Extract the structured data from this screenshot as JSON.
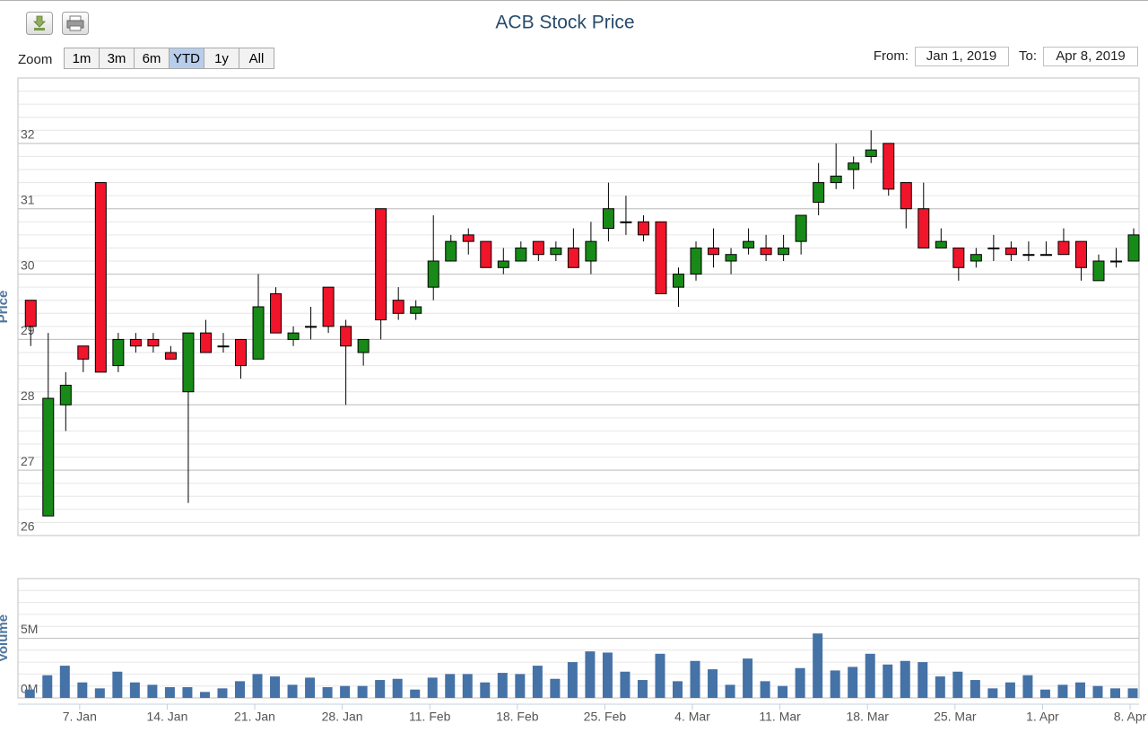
{
  "title": "ACB Stock Price",
  "zoom": {
    "label": "Zoom",
    "buttons": [
      "1m",
      "3m",
      "6m",
      "YTD",
      "1y",
      "All"
    ],
    "selected": 3
  },
  "range": {
    "from_label": "From:",
    "from": "Jan 1, 2019",
    "to_label": "To:",
    "to": "Apr 8, 2019"
  },
  "chart_data": [
    {
      "type": "candlestick",
      "y_label": "Price",
      "x": [
        "2019-01-02",
        "2019-01-03",
        "2019-01-04",
        "2019-01-07",
        "2019-01-08",
        "2019-01-09",
        "2019-01-10",
        "2019-01-11",
        "2019-01-14",
        "2019-01-15",
        "2019-01-16",
        "2019-01-17",
        "2019-01-18",
        "2019-01-21",
        "2019-01-22",
        "2019-01-23",
        "2019-01-24",
        "2019-01-25",
        "2019-01-28",
        "2019-01-29",
        "2019-01-30",
        "2019-01-31",
        "2019-02-01",
        "2019-02-11",
        "2019-02-12",
        "2019-02-13",
        "2019-02-14",
        "2019-02-15",
        "2019-02-18",
        "2019-02-19",
        "2019-02-20",
        "2019-02-21",
        "2019-02-22",
        "2019-02-25",
        "2019-02-26",
        "2019-02-27",
        "2019-02-28",
        "2019-03-01",
        "2019-03-04",
        "2019-03-05",
        "2019-03-06",
        "2019-03-07",
        "2019-03-08",
        "2019-03-11",
        "2019-03-12",
        "2019-03-13",
        "2019-03-14",
        "2019-03-15",
        "2019-03-18",
        "2019-03-19",
        "2019-03-20",
        "2019-03-21",
        "2019-03-22",
        "2019-03-25",
        "2019-03-26",
        "2019-03-27",
        "2019-03-28",
        "2019-03-29",
        "2019-04-01",
        "2019-04-02",
        "2019-04-03",
        "2019-04-04",
        "2019-04-05",
        "2019-04-08"
      ],
      "open": [
        29.6,
        26.3,
        28.0,
        28.9,
        31.4,
        28.6,
        29.0,
        29.0,
        28.8,
        28.2,
        29.1,
        28.9,
        29.0,
        28.7,
        29.7,
        29.0,
        29.2,
        29.8,
        29.2,
        28.8,
        31.0,
        29.6,
        29.4,
        29.8,
        30.2,
        30.6,
        30.5,
        30.1,
        30.2,
        30.5,
        30.3,
        30.4,
        30.2,
        30.7,
        30.8,
        30.8,
        30.8,
        29.8,
        30.0,
        30.4,
        30.2,
        30.4,
        30.4,
        30.3,
        30.5,
        31.1,
        31.4,
        31.6,
        31.8,
        32.0,
        31.4,
        31.0,
        30.4,
        30.4,
        30.2,
        30.4,
        30.4,
        30.3,
        30.3,
        30.5,
        30.5,
        29.9,
        30.2,
        30.2
      ],
      "high": [
        29.6,
        29.1,
        28.5,
        28.9,
        31.4,
        29.1,
        29.1,
        29.1,
        28.9,
        29.1,
        29.3,
        29.1,
        29.0,
        30.0,
        29.8,
        29.2,
        29.5,
        29.8,
        29.3,
        29.0,
        31.0,
        29.8,
        29.6,
        30.9,
        30.6,
        30.7,
        30.5,
        30.4,
        30.5,
        30.5,
        30.5,
        30.7,
        30.8,
        31.4,
        31.2,
        30.9,
        30.8,
        30.1,
        30.5,
        30.7,
        30.4,
        30.7,
        30.6,
        30.6,
        30.9,
        31.7,
        32.0,
        31.8,
        32.2,
        32.0,
        31.4,
        31.4,
        30.7,
        30.4,
        30.4,
        30.6,
        30.5,
        30.5,
        30.5,
        30.7,
        30.5,
        30.3,
        30.4,
        30.7
      ],
      "low": [
        28.9,
        26.3,
        27.6,
        28.5,
        28.5,
        28.5,
        28.8,
        28.8,
        28.7,
        26.5,
        28.8,
        28.8,
        28.4,
        28.7,
        29.1,
        28.9,
        29.0,
        29.1,
        28.0,
        28.6,
        29.0,
        29.3,
        29.3,
        29.6,
        30.2,
        30.3,
        30.1,
        30.0,
        30.2,
        30.2,
        30.2,
        30.1,
        30.0,
        30.5,
        30.6,
        30.5,
        29.7,
        29.5,
        29.9,
        30.1,
        30.0,
        30.3,
        30.2,
        30.2,
        30.3,
        30.9,
        31.3,
        31.3,
        31.7,
        31.2,
        30.7,
        30.4,
        30.4,
        29.9,
        30.1,
        30.2,
        30.2,
        30.2,
        30.3,
        30.3,
        29.9,
        29.9,
        30.1,
        30.2
      ],
      "close": [
        29.2,
        28.1,
        28.3,
        28.7,
        28.5,
        29.0,
        28.9,
        28.9,
        28.7,
        29.1,
        28.8,
        28.9,
        28.6,
        29.5,
        29.1,
        29.1,
        29.2,
        29.2,
        28.9,
        29.0,
        29.3,
        29.4,
        29.5,
        30.2,
        30.5,
        30.5,
        30.1,
        30.2,
        30.4,
        30.3,
        30.4,
        30.1,
        30.5,
        31.0,
        30.8,
        30.6,
        29.7,
        30.0,
        30.4,
        30.3,
        30.3,
        30.5,
        30.3,
        30.4,
        30.9,
        31.4,
        31.5,
        31.7,
        31.9,
        31.3,
        31.0,
        30.4,
        30.5,
        30.1,
        30.3,
        30.4,
        30.3,
        30.3,
        30.3,
        30.3,
        30.1,
        30.2,
        30.2,
        30.6
      ],
      "up_color": "#178a17",
      "down_color": "#f0152a",
      "ylim": [
        26,
        33
      ],
      "yticks": [
        26,
        27,
        28,
        29,
        30,
        31,
        32
      ],
      "minor_step": 0.2,
      "grid": true
    },
    {
      "type": "bar",
      "y_label": "Volume",
      "x": [
        "2019-01-02",
        "2019-01-03",
        "2019-01-04",
        "2019-01-07",
        "2019-01-08",
        "2019-01-09",
        "2019-01-10",
        "2019-01-11",
        "2019-01-14",
        "2019-01-15",
        "2019-01-16",
        "2019-01-17",
        "2019-01-18",
        "2019-01-21",
        "2019-01-22",
        "2019-01-23",
        "2019-01-24",
        "2019-01-25",
        "2019-01-28",
        "2019-01-29",
        "2019-01-30",
        "2019-01-31",
        "2019-02-01",
        "2019-02-11",
        "2019-02-12",
        "2019-02-13",
        "2019-02-14",
        "2019-02-15",
        "2019-02-18",
        "2019-02-19",
        "2019-02-20",
        "2019-02-21",
        "2019-02-22",
        "2019-02-25",
        "2019-02-26",
        "2019-02-27",
        "2019-02-28",
        "2019-03-01",
        "2019-03-04",
        "2019-03-05",
        "2019-03-06",
        "2019-03-07",
        "2019-03-08",
        "2019-03-11",
        "2019-03-12",
        "2019-03-13",
        "2019-03-14",
        "2019-03-15",
        "2019-03-18",
        "2019-03-19",
        "2019-03-20",
        "2019-03-21",
        "2019-03-22",
        "2019-03-25",
        "2019-03-26",
        "2019-03-27",
        "2019-03-28",
        "2019-03-29",
        "2019-04-01",
        "2019-04-02",
        "2019-04-03",
        "2019-04-04",
        "2019-04-05",
        "2019-04-08"
      ],
      "values": [
        700000,
        1900000,
        2700000,
        1300000,
        800000,
        2200000,
        1300000,
        1100000,
        900000,
        900000,
        500000,
        800000,
        1400000,
        2000000,
        1800000,
        1100000,
        1700000,
        900000,
        1000000,
        1000000,
        1500000,
        1600000,
        700000,
        1700000,
        2000000,
        2000000,
        1300000,
        2100000,
        2000000,
        2700000,
        1600000,
        3000000,
        3900000,
        3800000,
        2200000,
        1500000,
        3700000,
        1400000,
        3100000,
        2400000,
        1100000,
        3300000,
        1400000,
        1000000,
        2500000,
        5400000,
        2300000,
        2600000,
        3700000,
        2800000,
        3100000,
        3000000,
        1800000,
        2200000,
        1500000,
        800000,
        1300000,
        1900000,
        700000,
        1100000,
        1300000,
        1000000,
        800000,
        800000
      ],
      "color": "#4572a7",
      "ylim": [
        0,
        10000000
      ],
      "yticks": [
        {
          "value": 0,
          "label": "0M"
        },
        {
          "value": 5000000,
          "label": "5M"
        }
      ],
      "minor_step": 1000000,
      "grid": true,
      "xticks": [
        {
          "value": "2019-01-07",
          "label": "7. Jan"
        },
        {
          "value": "2019-01-14",
          "label": "14. Jan"
        },
        {
          "value": "2019-01-21",
          "label": "21. Jan"
        },
        {
          "value": "2019-01-28",
          "label": "28. Jan"
        },
        {
          "value": "2019-02-11",
          "label": "11. Feb"
        },
        {
          "value": "2019-02-18",
          "label": "18. Feb"
        },
        {
          "value": "2019-02-25",
          "label": "25. Feb"
        },
        {
          "value": "2019-03-04",
          "label": "4. Mar"
        },
        {
          "value": "2019-03-11",
          "label": "11. Mar"
        },
        {
          "value": "2019-03-18",
          "label": "18. Mar"
        },
        {
          "value": "2019-03-25",
          "label": "25. Mar"
        },
        {
          "value": "2019-04-01",
          "label": "1. Apr"
        },
        {
          "value": "2019-04-08",
          "label": "8. Apr"
        }
      ]
    }
  ]
}
